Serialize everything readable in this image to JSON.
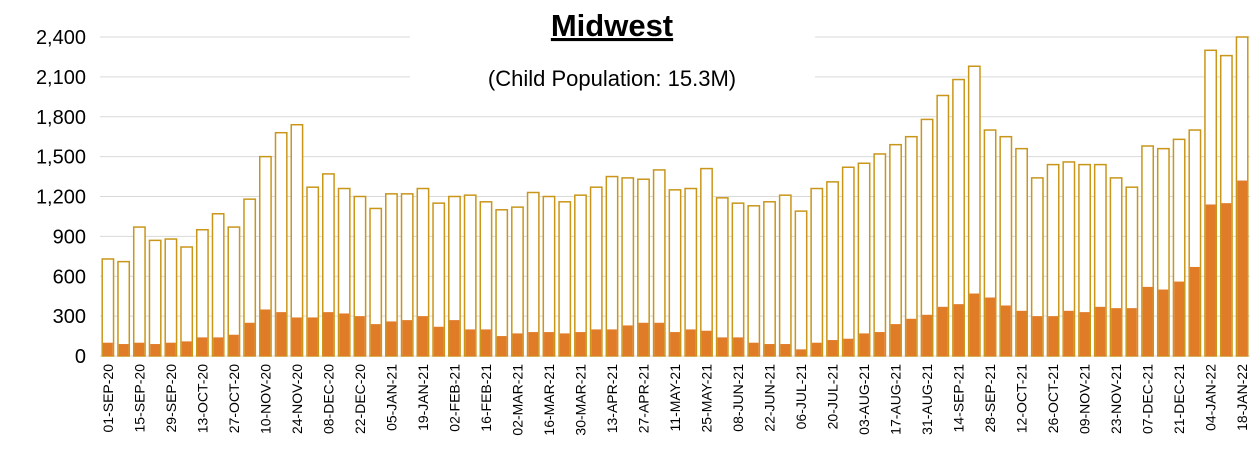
{
  "chart_data": {
    "type": "bar",
    "title": "Midwest",
    "subtitle": "(Child Population: 15.3M)",
    "categories": [
      "01-SEP-20",
      null,
      "15-SEP-20",
      null,
      "29-SEP-20",
      null,
      "13-OCT-20",
      null,
      "27-OCT-20",
      null,
      "10-NOV-20",
      null,
      "24-NOV-20",
      null,
      "08-DEC-20",
      null,
      "22-DEC-20",
      null,
      "05-JAN-21",
      null,
      "19-JAN-21",
      null,
      "02-FEB-21",
      null,
      "16-FEB-21",
      null,
      "02-MAR-21",
      null,
      "16-MAR-21",
      null,
      "30-MAR-21",
      null,
      "13-APR-21",
      null,
      "27-APR-21",
      null,
      "11-MAY-21",
      null,
      "25-MAY-21",
      null,
      "08-JUN-21",
      null,
      "22-JUN-21",
      null,
      "06-JUL-21",
      null,
      "20-JUL-21",
      null,
      "03-AUG-21",
      null,
      "17-AUG-21",
      null,
      "31-AUG-21",
      null,
      "14-SEP-21",
      null,
      "28-SEP-21",
      null,
      "12-OCT-21",
      null,
      "26-OCT-21",
      null,
      "09-NOV-21",
      null,
      "23-NOV-21",
      null,
      "07-DEC-21",
      null,
      "21-DEC-21",
      null,
      "04-JAN-22",
      null,
      "18-JAN-22"
    ],
    "series": [
      {
        "color": "#c9961a",
        "style": "outline",
        "values": [
          730,
          710,
          970,
          870,
          880,
          820,
          950,
          1070,
          970,
          1180,
          1500,
          1680,
          1740,
          1270,
          1370,
          1260,
          1200,
          1110,
          1220,
          1220,
          1260,
          1150,
          1200,
          1210,
          1160,
          1100,
          1120,
          1230,
          1200,
          1160,
          1210,
          1270,
          1350,
          1340,
          1330,
          1400,
          1250,
          1260,
          1410,
          1190,
          1150,
          1130,
          1160,
          1210,
          1090,
          1260,
          1310,
          1420,
          1450,
          1520,
          1590,
          1650,
          1780,
          1960,
          2080,
          2180,
          1700,
          1650,
          1560,
          1340,
          1440,
          1460,
          1440,
          1440,
          1340,
          1270,
          1580,
          1560,
          1630,
          1700,
          2300,
          2260,
          2400
        ]
      },
      {
        "color": "#e07b28",
        "style": "filled",
        "values": [
          100,
          90,
          100,
          90,
          100,
          110,
          140,
          140,
          160,
          250,
          350,
          330,
          290,
          290,
          330,
          320,
          300,
          240,
          260,
          270,
          300,
          220,
          270,
          200,
          200,
          150,
          170,
          180,
          180,
          170,
          180,
          200,
          200,
          230,
          250,
          250,
          180,
          200,
          190,
          140,
          140,
          100,
          90,
          90,
          50,
          100,
          120,
          130,
          170,
          180,
          240,
          280,
          310,
          370,
          390,
          470,
          440,
          380,
          340,
          300,
          300,
          340,
          330,
          370,
          360,
          360,
          520,
          500,
          560,
          670,
          1140,
          1150,
          1320
        ]
      }
    ],
    "ylim": [
      0,
      2400
    ],
    "yticks": [
      0,
      300,
      600,
      900,
      {
        "value": 1200,
        "label": "1,200"
      },
      {
        "value": 1500,
        "label": "1,500"
      },
      {
        "value": 1800,
        "label": "1,800"
      },
      {
        "value": 2100,
        "label": "2,100"
      },
      {
        "value": 2400,
        "label": "2,400"
      }
    ],
    "grid": true
  }
}
